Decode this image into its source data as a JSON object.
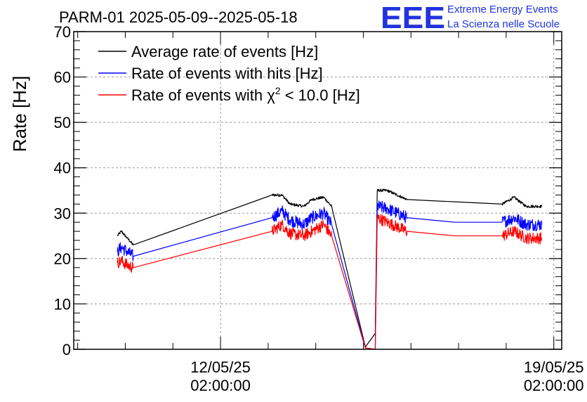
{
  "header": {
    "title": "PARM-01 2025-05-09--2025-05-18",
    "logo_text": "EEE",
    "logo_line1": "Extreme Energy Events",
    "logo_line2": "La Scienza nelle Scuole"
  },
  "colors": {
    "average": "#000000",
    "hits": "#0000ff",
    "chi2": "#ff0000",
    "grid": "#999999",
    "logo": "#2233dd"
  },
  "chart_data": {
    "type": "line",
    "title": "PARM-01 2025-05-09--2025-05-18",
    "xlabel": "",
    "ylabel": "Rate [Hz]",
    "ylim": [
      0,
      70
    ],
    "xlim_days": [
      "2025-05-09 00:00",
      "2025-05-19 06:00"
    ],
    "grid": true,
    "legend_position": "top-left",
    "yticks": [
      0,
      10,
      20,
      30,
      40,
      50,
      60,
      70
    ],
    "xticks": [
      {
        "date": "2025-05-12 02:00",
        "label_line1": "12/05/25",
        "label_line2": "02:00:00"
      },
      {
        "date": "2025-05-19 02:00",
        "label_line1": "19/05/25",
        "label_line2": "02:00:00"
      }
    ],
    "legend": [
      {
        "name": "Average rate of events [Hz]",
        "series": "average"
      },
      {
        "name": "Rate of events with hits [Hz]",
        "series": "hits"
      },
      {
        "name_prefix": "Rate of events with ",
        "name_symbol": "χ",
        "name_sup": "2",
        "name_suffix": " < 10.0 [Hz]",
        "series": "chi2"
      }
    ],
    "series": [
      {
        "name": "Average rate of events [Hz]",
        "color": "#000000",
        "noise": 0.3,
        "points": [
          [
            "2025-05-09 22:00",
            25.0
          ],
          [
            "2025-05-10 00:00",
            26.0
          ],
          [
            "2025-05-10 03:00",
            24.5
          ],
          [
            "2025-05-10 06:00",
            23.0
          ],
          [
            "2025-05-13 04:00",
            34.0
          ],
          [
            "2025-05-13 09:00",
            34.0
          ],
          [
            "2025-05-13 13:00",
            32.0
          ],
          [
            "2025-05-13 20:00",
            31.5
          ],
          [
            "2025-05-14 00:00",
            33.0
          ],
          [
            "2025-05-14 06:00",
            33.5
          ],
          [
            "2025-05-14 10:00",
            31.5
          ],
          [
            "2025-05-15 03:00",
            0.5
          ],
          [
            "2025-05-15 08:00",
            3.5
          ],
          [
            "2025-05-15 09:00",
            35.0
          ],
          [
            "2025-05-15 14:00",
            35.0
          ],
          [
            "2025-05-16 00:00",
            33.0
          ],
          [
            "2025-05-17 00:00",
            32.5
          ],
          [
            "2025-05-18 00:00",
            32.0
          ],
          [
            "2025-05-18 06:00",
            33.5
          ],
          [
            "2025-05-18 12:00",
            31.5
          ],
          [
            "2025-05-18 20:00",
            31.5
          ]
        ]
      },
      {
        "name": "Rate of events with hits [Hz]",
        "color": "#0000ff",
        "noise": 1.4,
        "points": [
          [
            "2025-05-09 22:00",
            21.5
          ],
          [
            "2025-05-10 00:00",
            22.5
          ],
          [
            "2025-05-10 03:00",
            21.5
          ],
          [
            "2025-05-10 06:00",
            20.5
          ],
          [
            "2025-05-13 04:00",
            29.0
          ],
          [
            "2025-05-13 09:00",
            30.5
          ],
          [
            "2025-05-13 13:00",
            28.5
          ],
          [
            "2025-05-13 20:00",
            27.5
          ],
          [
            "2025-05-14 00:00",
            29.0
          ],
          [
            "2025-05-14 06:00",
            30.0
          ],
          [
            "2025-05-14 10:00",
            27.5
          ],
          [
            "2025-05-15 03:00",
            0.3
          ],
          [
            "2025-05-15 08:00",
            0.0
          ],
          [
            "2025-05-15 09:00",
            31.5
          ],
          [
            "2025-05-15 14:00",
            31.0
          ],
          [
            "2025-05-16 00:00",
            29.0
          ],
          [
            "2025-05-17 00:00",
            28.0
          ],
          [
            "2025-05-18 00:00",
            28.0
          ],
          [
            "2025-05-18 06:00",
            29.0
          ],
          [
            "2025-05-18 12:00",
            27.5
          ],
          [
            "2025-05-18 20:00",
            27.5
          ]
        ]
      },
      {
        "name": "Rate of events with χ2 < 10.0 [Hz]",
        "color": "#ff0000",
        "noise": 1.3,
        "points": [
          [
            "2025-05-09 22:00",
            19.0
          ],
          [
            "2025-05-10 00:00",
            19.5
          ],
          [
            "2025-05-10 03:00",
            18.5
          ],
          [
            "2025-05-10 06:00",
            18.0
          ],
          [
            "2025-05-13 04:00",
            26.0
          ],
          [
            "2025-05-13 09:00",
            27.5
          ],
          [
            "2025-05-13 13:00",
            25.5
          ],
          [
            "2025-05-13 20:00",
            25.0
          ],
          [
            "2025-05-14 00:00",
            26.0
          ],
          [
            "2025-05-14 06:00",
            27.5
          ],
          [
            "2025-05-14 10:00",
            25.0
          ],
          [
            "2025-05-15 03:00",
            0.3
          ],
          [
            "2025-05-15 08:00",
            0.0
          ],
          [
            "2025-05-15 09:00",
            29.0
          ],
          [
            "2025-05-15 14:00",
            28.0
          ],
          [
            "2025-05-16 00:00",
            26.0
          ],
          [
            "2025-05-17 00:00",
            25.0
          ],
          [
            "2025-05-18 00:00",
            25.0
          ],
          [
            "2025-05-18 06:00",
            26.0
          ],
          [
            "2025-05-18 12:00",
            24.5
          ],
          [
            "2025-05-18 20:00",
            24.5
          ]
        ]
      }
    ]
  }
}
